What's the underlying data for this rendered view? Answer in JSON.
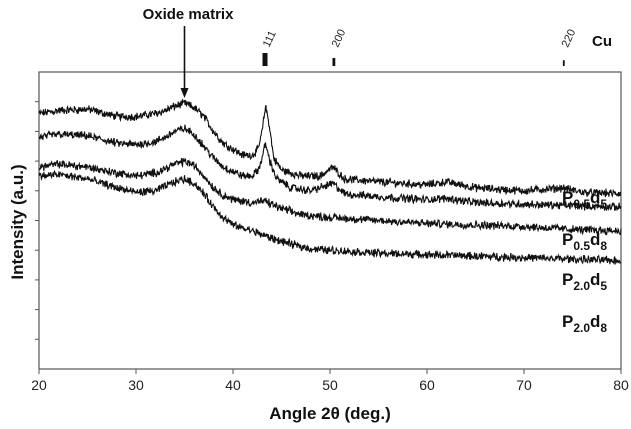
{
  "chart_data": {
    "type": "line",
    "xlabel": "Angle 2θ (deg.)",
    "ylabel": "Intensity  (a.u.)",
    "xlim": [
      20,
      80
    ],
    "x_ticks": [
      "20",
      "30",
      "40",
      "50",
      "60",
      "70",
      "80"
    ],
    "y_ticks_labeled": false,
    "grid": false,
    "reference": {
      "label": "Cu",
      "peaks": [
        {
          "x": 43.3,
          "label": "111",
          "relative_intensity": 1.0
        },
        {
          "x": 50.4,
          "label": "200",
          "relative_intensity": 0.45
        },
        {
          "x": 74.1,
          "label": "220",
          "relative_intensity": 0.2
        }
      ]
    },
    "annotation": {
      "text": "Oxide matrix",
      "x": 35
    },
    "series": [
      {
        "name": "P0.5d5",
        "label_main": "P",
        "label_sub1": "0.5",
        "label_mid": "d",
        "label_sub2": "5",
        "points": [
          [
            20,
            0.86
          ],
          [
            22,
            0.87
          ],
          [
            25,
            0.875
          ],
          [
            28,
            0.85
          ],
          [
            30,
            0.85
          ],
          [
            32,
            0.86
          ],
          [
            33,
            0.87
          ],
          [
            34,
            0.885
          ],
          [
            35,
            0.895
          ],
          [
            36,
            0.88
          ],
          [
            37,
            0.85
          ],
          [
            38,
            0.8
          ],
          [
            39,
            0.76
          ],
          [
            40,
            0.74
          ],
          [
            41,
            0.72
          ],
          [
            42,
            0.72
          ],
          [
            42.6,
            0.74
          ],
          [
            43,
            0.8
          ],
          [
            43.35,
            0.885
          ],
          [
            43.7,
            0.83
          ],
          [
            44.2,
            0.71
          ],
          [
            45,
            0.67
          ],
          [
            47,
            0.65
          ],
          [
            49,
            0.65
          ],
          [
            50.3,
            0.68
          ],
          [
            51.5,
            0.64
          ],
          [
            55,
            0.63
          ],
          [
            60,
            0.62
          ],
          [
            62,
            0.63
          ],
          [
            65,
            0.61
          ],
          [
            70,
            0.6
          ],
          [
            74,
            0.61
          ],
          [
            76,
            0.595
          ],
          [
            80,
            0.59
          ]
        ]
      },
      {
        "name": "P0.5d8",
        "label_main": "P",
        "label_sub1": "0.5",
        "label_mid": "d",
        "label_sub2": "8",
        "points": [
          [
            20,
            0.78
          ],
          [
            22,
            0.79
          ],
          [
            25,
            0.785
          ],
          [
            28,
            0.76
          ],
          [
            30,
            0.755
          ],
          [
            32,
            0.765
          ],
          [
            33,
            0.78
          ],
          [
            34,
            0.8
          ],
          [
            35,
            0.81
          ],
          [
            36,
            0.79
          ],
          [
            37,
            0.75
          ],
          [
            38,
            0.71
          ],
          [
            39,
            0.68
          ],
          [
            40,
            0.665
          ],
          [
            41,
            0.65
          ],
          [
            42,
            0.65
          ],
          [
            42.6,
            0.67
          ],
          [
            43,
            0.71
          ],
          [
            43.35,
            0.76
          ],
          [
            43.8,
            0.7
          ],
          [
            44.5,
            0.64
          ],
          [
            46,
            0.61
          ],
          [
            48,
            0.6
          ],
          [
            50.3,
            0.625
          ],
          [
            51.5,
            0.59
          ],
          [
            55,
            0.58
          ],
          [
            60,
            0.57
          ],
          [
            62,
            0.575
          ],
          [
            65,
            0.56
          ],
          [
            70,
            0.555
          ],
          [
            75,
            0.55
          ],
          [
            80,
            0.545
          ]
        ]
      },
      {
        "name": "P2.0d5",
        "label_main": "P",
        "label_sub1": "2.0",
        "label_mid": "d",
        "label_sub2": "5",
        "points": [
          [
            20,
            0.68
          ],
          [
            22,
            0.69
          ],
          [
            25,
            0.68
          ],
          [
            28,
            0.66
          ],
          [
            30,
            0.65
          ],
          [
            32,
            0.66
          ],
          [
            33,
            0.675
          ],
          [
            34,
            0.69
          ],
          [
            35,
            0.7
          ],
          [
            36,
            0.685
          ],
          [
            37,
            0.65
          ],
          [
            38,
            0.61
          ],
          [
            39,
            0.585
          ],
          [
            40,
            0.57
          ],
          [
            42,
            0.56
          ],
          [
            43.3,
            0.565
          ],
          [
            45,
            0.54
          ],
          [
            47,
            0.52
          ],
          [
            50,
            0.51
          ],
          [
            55,
            0.5
          ],
          [
            60,
            0.49
          ],
          [
            65,
            0.485
          ],
          [
            70,
            0.48
          ],
          [
            75,
            0.47
          ],
          [
            80,
            0.465
          ]
        ]
      },
      {
        "name": "P2.0d8",
        "label_main": "P",
        "label_sub1": "2.0",
        "label_mid": "d",
        "label_sub2": "8",
        "points": [
          [
            20,
            0.65
          ],
          [
            22,
            0.655
          ],
          [
            25,
            0.64
          ],
          [
            28,
            0.61
          ],
          [
            30,
            0.595
          ],
          [
            32,
            0.6
          ],
          [
            33,
            0.615
          ],
          [
            34,
            0.63
          ],
          [
            35,
            0.64
          ],
          [
            36,
            0.625
          ],
          [
            37,
            0.59
          ],
          [
            38,
            0.545
          ],
          [
            39,
            0.51
          ],
          [
            40,
            0.485
          ],
          [
            42,
            0.465
          ],
          [
            44,
            0.44
          ],
          [
            46,
            0.42
          ],
          [
            48,
            0.405
          ],
          [
            50,
            0.4
          ],
          [
            55,
            0.39
          ],
          [
            60,
            0.385
          ],
          [
            65,
            0.38
          ],
          [
            70,
            0.375
          ],
          [
            75,
            0.37
          ],
          [
            80,
            0.365
          ]
        ]
      }
    ],
    "ylim": [
      0,
      1
    ]
  }
}
